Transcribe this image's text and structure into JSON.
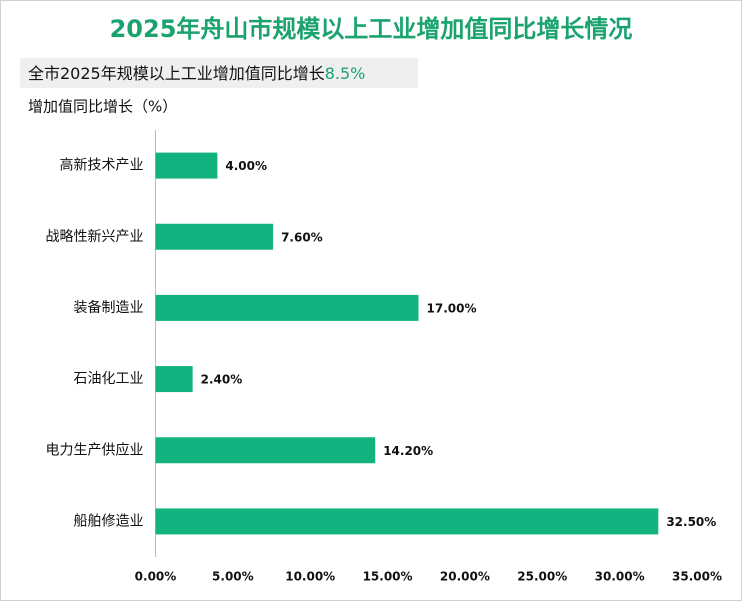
{
  "chart_data": {
    "type": "bar",
    "orientation": "horizontal",
    "title": "2025年舟山市规模以上工业增加值同比增长情况",
    "subtitle": "全市2025年规模以上工业增加值同比增长",
    "subtitle_highlight": "8.5%",
    "axis_label": "增加值同比增长（%）",
    "categories": [
      "高新技术产业",
      "战略性新兴产业",
      "装备制造业",
      "石油化工业",
      "电力生产供应业",
      "船舶修造业"
    ],
    "values": [
      4.0,
      7.6,
      17.0,
      2.4,
      14.2,
      32.5
    ],
    "value_labels": [
      "4.00%",
      "7.60%",
      "17.00%",
      "2.40%",
      "14.20%",
      "32.50%"
    ],
    "color": "#13b37f",
    "xlim": [
      0,
      35
    ],
    "xticks": [
      {
        "value": 0,
        "label": "0.00%"
      },
      {
        "value": 5,
        "label": "5.00%"
      },
      {
        "value": 10,
        "label": "10.00%"
      },
      {
        "value": 15,
        "label": "15.00%"
      },
      {
        "value": 20,
        "label": "20.00%"
      },
      {
        "value": 25,
        "label": "25.00%"
      },
      {
        "value": 30,
        "label": "30.00%"
      },
      {
        "value": 35,
        "label": "35.00%"
      }
    ]
  }
}
